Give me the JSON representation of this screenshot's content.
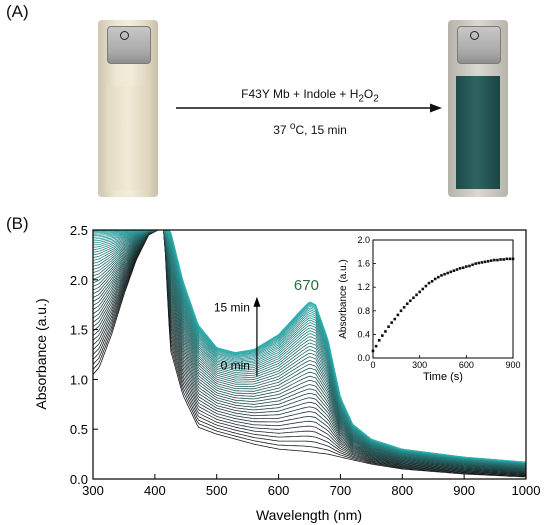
{
  "panel_labels": {
    "a": "(A)",
    "b": "(B)"
  },
  "reaction": {
    "reagents": {
      "prefix": "F43Y Mb + Indole + H",
      "sub": "2",
      "mid": "O",
      "sub2": "2"
    },
    "conditions": {
      "temp": "37 ",
      "sup": "o",
      "rest": "C, 15 min"
    }
  },
  "colors": {
    "trace_dark": "#1a1a1a",
    "trace_teal": "#2fb3b3",
    "cuvette_start": "#eee7d2",
    "cuvette_end": "#2f6462"
  },
  "chart_data": [
    {
      "type": "line",
      "title": "",
      "xlabel": "Wavelength (nm)",
      "ylabel": "Absorbance (a.u.)",
      "xlim": [
        300,
        1000
      ],
      "ylim": [
        0,
        2.5
      ],
      "xticks": [
        300,
        400,
        500,
        600,
        700,
        800,
        900,
        1000
      ],
      "yticks": [
        0.0,
        0.5,
        1.0,
        1.5,
        2.0,
        2.5
      ],
      "xtick_labels": [
        "300",
        "400",
        "500",
        "600",
        "700",
        "800",
        "900",
        "1000"
      ],
      "ytick_labels": [
        "0.0",
        "0.5",
        "1.0",
        "1.5",
        "2.0",
        "2.5"
      ],
      "series_count": 46,
      "peak_annotation": "670",
      "time_labels": {
        "end": "15 min",
        "start": "0 min"
      },
      "first_spectrum": {
        "x": [
          300,
          310,
          330,
          350,
          370,
          390,
          405,
          415,
          425,
          445,
          470,
          500,
          530,
          560,
          600,
          640,
          680,
          700,
          750,
          800,
          900,
          1000
        ],
        "y": [
          1.05,
          1.12,
          1.45,
          1.85,
          2.2,
          2.45,
          2.5,
          2.5,
          1.3,
          0.85,
          0.52,
          0.45,
          0.4,
          0.35,
          0.3,
          0.28,
          0.25,
          0.22,
          0.15,
          0.1,
          0.05,
          0.02
        ]
      },
      "last_spectrum": {
        "x": [
          300,
          310,
          330,
          350,
          370,
          390,
          405,
          415,
          425,
          445,
          470,
          500,
          530,
          560,
          600,
          640,
          650,
          660,
          680,
          700,
          720,
          750,
          800,
          900,
          1000
        ],
        "y": [
          2.5,
          2.5,
          2.5,
          2.5,
          2.5,
          2.5,
          2.5,
          2.5,
          2.5,
          2.0,
          1.55,
          1.32,
          1.27,
          1.3,
          1.45,
          1.72,
          1.78,
          1.75,
          1.4,
          0.82,
          0.55,
          0.4,
          0.3,
          0.22,
          0.17
        ]
      }
    },
    {
      "type": "scatter",
      "title": "",
      "xlabel": "Time (s)",
      "ylabel": "Absorbance (a.u.)",
      "xlim": [
        0,
        900
      ],
      "ylim": [
        0,
        2.0
      ],
      "xticks": [
        0,
        300,
        600,
        900
      ],
      "yticks": [
        0.0,
        0.4,
        0.8,
        1.2,
        1.6,
        2.0
      ],
      "xtick_labels": [
        "0",
        "300",
        "600",
        "900"
      ],
      "ytick_labels": [
        "0.0",
        "0.4",
        "0.8",
        "1.2",
        "1.6",
        "2.0"
      ],
      "x": [
        0,
        20,
        40,
        60,
        80,
        100,
        120,
        140,
        160,
        180,
        200,
        220,
        240,
        260,
        280,
        300,
        320,
        340,
        360,
        380,
        400,
        420,
        440,
        460,
        480,
        500,
        520,
        540,
        560,
        580,
        600,
        620,
        640,
        660,
        680,
        700,
        720,
        740,
        760,
        780,
        800,
        820,
        840,
        860,
        880,
        900
      ],
      "y": [
        0.12,
        0.2,
        0.3,
        0.38,
        0.45,
        0.53,
        0.6,
        0.66,
        0.73,
        0.8,
        0.86,
        0.92,
        0.97,
        1.02,
        1.07,
        1.12,
        1.17,
        1.22,
        1.27,
        1.3,
        1.34,
        1.37,
        1.4,
        1.42,
        1.44,
        1.46,
        1.48,
        1.5,
        1.52,
        1.53,
        1.55,
        1.56,
        1.58,
        1.6,
        1.61,
        1.62,
        1.63,
        1.64,
        1.65,
        1.66,
        1.66,
        1.67,
        1.67,
        1.68,
        1.68,
        1.68
      ]
    }
  ]
}
